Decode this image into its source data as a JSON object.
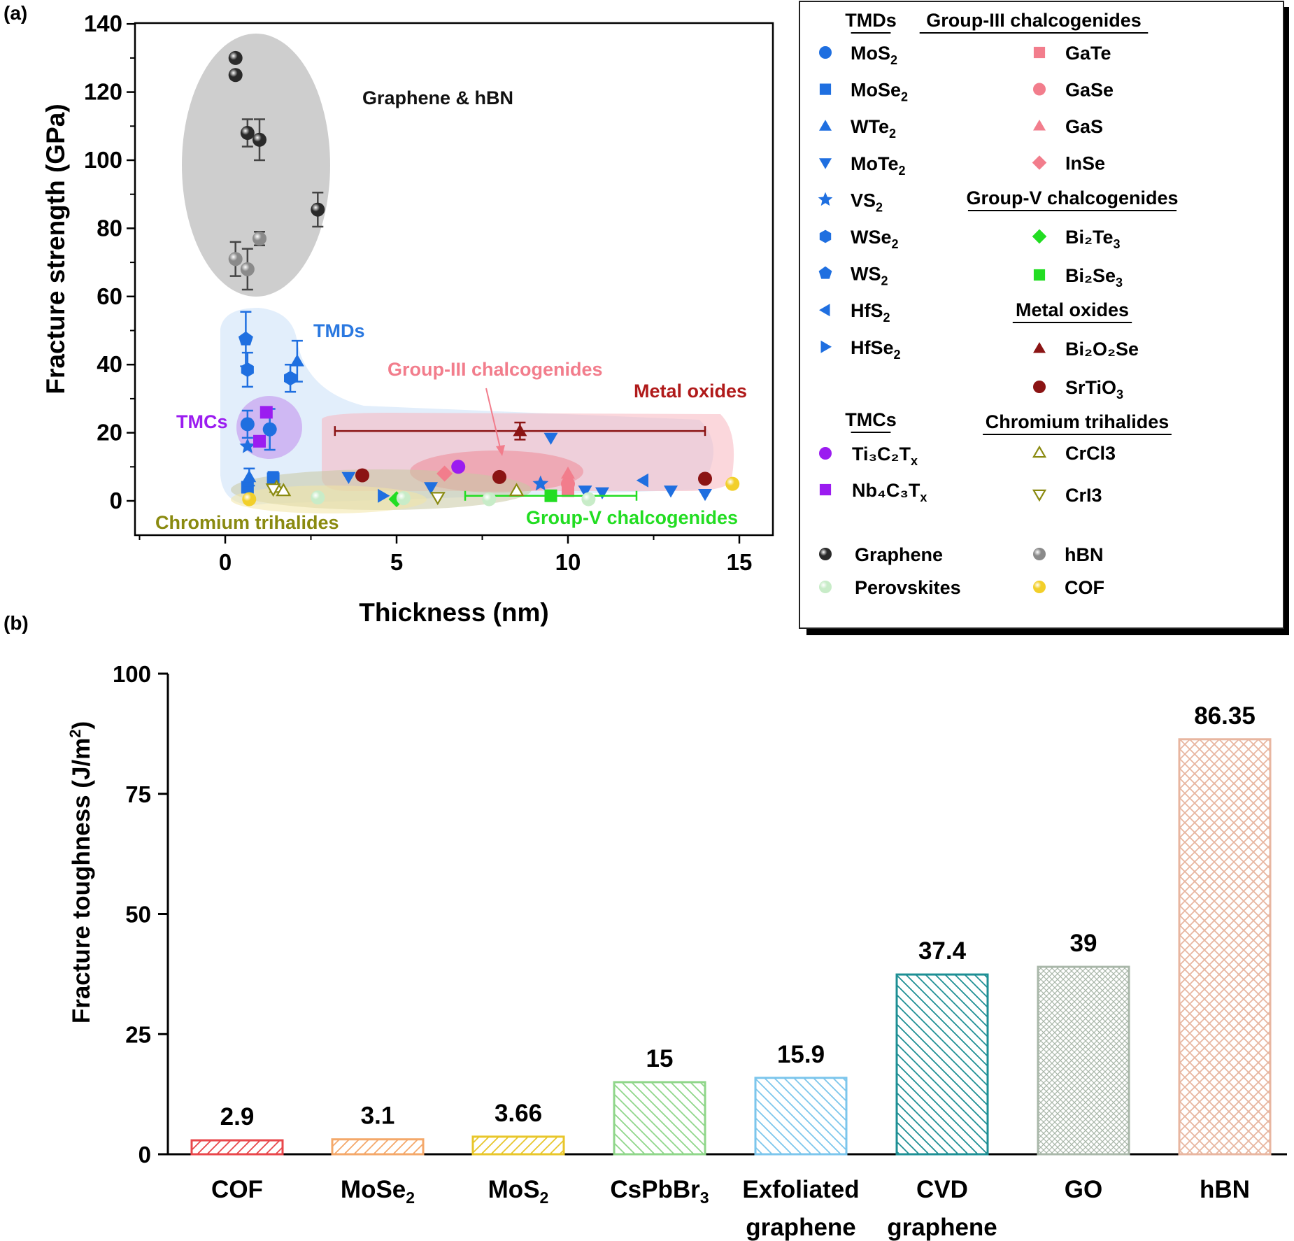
{
  "chart_data": [
    {
      "panel_label": "(a)",
      "type": "scatter",
      "xlabel": "Thickness (nm)",
      "ylabel": "Fracture strength (GPa)",
      "xlim": [
        -2.5,
        16
      ],
      "ylim": [
        -10,
        140
      ],
      "xticks": [
        "0",
        "5",
        "10",
        "15"
      ],
      "yticks": [
        "0",
        "20",
        "40",
        "60",
        "80",
        "100",
        "120",
        "140"
      ],
      "region_labels": {
        "graphene_hbn": "Graphene & hBN",
        "tmds": "TMDs",
        "tmcs": "TMCs",
        "group3": "Group-III chalcogenides",
        "metal_oxides": "Metal oxides",
        "chromium": "Chromium trihalides",
        "group5": "Group-V chalcogenides"
      },
      "legend": {
        "left_groups": [
          {
            "title": "TMDs",
            "items": [
              {
                "sym": "circle",
                "color": "#1f6fe0",
                "main": "MoS",
                "sub": "2"
              },
              {
                "sym": "square",
                "color": "#1f6fe0",
                "main": "MoSe",
                "sub": "2"
              },
              {
                "sym": "triangle-up",
                "color": "#1f6fe0",
                "main": "WTe",
                "sub": "2"
              },
              {
                "sym": "triangle-down",
                "color": "#1f6fe0",
                "main": "MoTe",
                "sub": "2"
              },
              {
                "sym": "star",
                "color": "#1f6fe0",
                "main": "VS",
                "sub": "2"
              },
              {
                "sym": "hexagon",
                "color": "#1f6fe0",
                "main": "WSe",
                "sub": "2"
              },
              {
                "sym": "pentagon",
                "color": "#1f6fe0",
                "main": "WS",
                "sub": "2"
              },
              {
                "sym": "triangle-left",
                "color": "#1f6fe0",
                "main": "HfS",
                "sub": "2"
              },
              {
                "sym": "triangle-right",
                "color": "#1f6fe0",
                "main": "HfSe",
                "sub": "2"
              }
            ]
          },
          {
            "title": "TMCs",
            "items": [
              {
                "sym": "circle",
                "color": "#9b1cf0",
                "main": "Ti₃C₂T",
                "sub": "x"
              },
              {
                "sym": "square",
                "color": "#9b1cf0",
                "main": "Nb₄C₃T",
                "sub": "x"
              }
            ]
          }
        ],
        "right_groups": [
          {
            "title": "Group-III chalcogenides",
            "items": [
              {
                "sym": "square",
                "color": "#f27d8c",
                "main": "GaTe",
                "sub": ""
              },
              {
                "sym": "circle",
                "color": "#f27d8c",
                "main": "GaSe",
                "sub": ""
              },
              {
                "sym": "triangle-up",
                "color": "#f27d8c",
                "main": "GaS",
                "sub": ""
              },
              {
                "sym": "diamond",
                "color": "#f27d8c",
                "main": "InSe",
                "sub": ""
              }
            ]
          },
          {
            "title": "Group-V chalcogenides",
            "items": [
              {
                "sym": "diamond",
                "color": "#22dd22",
                "main": "Bi₂Te",
                "sub": "3"
              },
              {
                "sym": "square",
                "color": "#22dd22",
                "main": "Bi₂Se",
                "sub": "3"
              }
            ]
          },
          {
            "title": "Metal oxides",
            "items": [
              {
                "sym": "triangle-up",
                "color": "#8b1414",
                "main": "Bi₂O₂Se",
                "sub": ""
              },
              {
                "sym": "circle",
                "color": "#8b1414",
                "main": "SrTiO",
                "sub": "3"
              }
            ]
          },
          {
            "title": "Chromium trihalides",
            "items": [
              {
                "sym": "open-triangle-up",
                "color": "#8a8a10",
                "main": "CrCl3",
                "sub": ""
              },
              {
                "sym": "open-triangle-down",
                "color": "#8a8a10",
                "main": "CrI3",
                "sub": ""
              }
            ]
          }
        ],
        "bottom_items": [
          {
            "sym": "sphere",
            "color": "#2a2a2a",
            "main": "Graphene",
            "sub": ""
          },
          {
            "sym": "sphere",
            "color": "#8a8a8a",
            "main": "hBN",
            "sub": ""
          },
          {
            "sym": "sphere",
            "color": "#c8ecc8",
            "main": "Perovskites",
            "sub": ""
          },
          {
            "sym": "sphere",
            "color": "#f2cf2a",
            "main": "COF",
            "sub": ""
          }
        ]
      },
      "series": [
        {
          "name": "Graphene",
          "sym": "sphere",
          "color": "#2a2a2a",
          "points": [
            {
              "x": 0.3,
              "y": 130
            },
            {
              "x": 0.3,
              "y": 125
            },
            {
              "x": 0.65,
              "y": 108,
              "err": 4
            },
            {
              "x": 1.0,
              "y": 106,
              "err": 6
            },
            {
              "x": 2.7,
              "y": 85.5,
              "err": 5
            }
          ]
        },
        {
          "name": "hBN",
          "sym": "sphere",
          "color": "#8a8a8a",
          "points": [
            {
              "x": 0.3,
              "y": 71,
              "err": 5
            },
            {
              "x": 0.65,
              "y": 68,
              "err": 6
            },
            {
              "x": 1.0,
              "y": 77,
              "err": 2
            }
          ]
        },
        {
          "name": "MoS2",
          "sym": "circle",
          "color": "#1f6fe0",
          "points": [
            {
              "x": 0.65,
              "y": 22.5,
              "err": 4
            },
            {
              "x": 1.3,
              "y": 21,
              "err": 6
            }
          ]
        },
        {
          "name": "MoSe2",
          "sym": "square",
          "color": "#1f6fe0",
          "points": [
            {
              "x": 0.65,
              "y": 4
            },
            {
              "x": 1.4,
              "y": 6.5,
              "err": 2
            }
          ]
        },
        {
          "name": "WTe2",
          "sym": "triangle-up",
          "color": "#1f6fe0",
          "points": [
            {
              "x": 0.7,
              "y": 7,
              "err": 2.5
            },
            {
              "x": 2.1,
              "y": 41,
              "err": 6
            }
          ]
        },
        {
          "name": "MoTe2",
          "sym": "triangle-down",
          "color": "#1f6fe0",
          "points": [
            {
              "x": 3.6,
              "y": 7
            },
            {
              "x": 6.0,
              "y": 4
            },
            {
              "x": 9.5,
              "y": 18.5
            },
            {
              "x": 10.5,
              "y": 3
            },
            {
              "x": 11.0,
              "y": 2.5
            },
            {
              "x": 13.0,
              "y": 3
            },
            {
              "x": 14.0,
              "y": 2
            }
          ]
        },
        {
          "name": "VS2",
          "sym": "star",
          "color": "#1f6fe0",
          "points": [
            {
              "x": 0.65,
              "y": 16
            },
            {
              "x": 9.2,
              "y": 5
            }
          ]
        },
        {
          "name": "WSe2",
          "sym": "hexagon",
          "color": "#1f6fe0",
          "points": [
            {
              "x": 0.65,
              "y": 38.5,
              "err": 5
            },
            {
              "x": 1.9,
              "y": 36,
              "err": 4
            }
          ]
        },
        {
          "name": "WS2",
          "sym": "pentagon",
          "color": "#1f6fe0",
          "points": [
            {
              "x": 0.6,
              "y": 47.5,
              "err": 8
            }
          ]
        },
        {
          "name": "HfS2",
          "sym": "triangle-left",
          "color": "#1f6fe0",
          "points": [
            {
              "x": 12.2,
              "y": 6
            }
          ]
        },
        {
          "name": "HfSe2",
          "sym": "triangle-right",
          "color": "#1f6fe0",
          "points": [
            {
              "x": 4.6,
              "y": 1.5
            }
          ]
        },
        {
          "name": "Ti3C2Tx",
          "sym": "circle",
          "color": "#9b1cf0",
          "points": [
            {
              "x": 6.8,
              "y": 10
            }
          ]
        },
        {
          "name": "Nb4C3Tx",
          "sym": "square",
          "color": "#9b1cf0",
          "points": [
            {
              "x": 1.2,
              "y": 26
            },
            {
              "x": 1.0,
              "y": 17.5
            }
          ]
        },
        {
          "name": "GaTe",
          "sym": "square",
          "color": "#f27d8c",
          "points": [
            {
              "x": 10.0,
              "y": 3
            }
          ]
        },
        {
          "name": "GaSe",
          "sym": "circle",
          "color": "#f27d8c",
          "points": [
            {
              "x": 10.0,
              "y": 5
            }
          ]
        },
        {
          "name": "GaS",
          "sym": "triangle-up",
          "color": "#f27d8c",
          "points": [
            {
              "x": 10.0,
              "y": 8
            }
          ]
        },
        {
          "name": "InSe",
          "sym": "diamond",
          "color": "#f27d8c",
          "points": [
            {
              "x": 6.4,
              "y": 8
            }
          ]
        },
        {
          "name": "Bi2Te3",
          "sym": "diamond",
          "color": "#22dd22",
          "points": [
            {
              "x": 5.0,
              "y": 0.5
            }
          ]
        },
        {
          "name": "Bi2Se3",
          "sym": "square",
          "color": "#22dd22",
          "points": [
            {
              "x": 9.5,
              "y": 1.5,
              "xerr_low": 7.0,
              "xerr_high": 12.0
            }
          ]
        },
        {
          "name": "Bi2O2Se",
          "sym": "triangle-up",
          "color": "#8b1414",
          "points": [
            {
              "x": 8.6,
              "y": 20.5,
              "err": 2.5,
              "xerr_low": 3.2,
              "xerr_high": 14.0
            }
          ]
        },
        {
          "name": "SrTiO3",
          "sym": "circle",
          "color": "#8b1414",
          "points": [
            {
              "x": 4.0,
              "y": 7.5
            },
            {
              "x": 8.0,
              "y": 7
            },
            {
              "x": 14.0,
              "y": 6.5
            }
          ]
        },
        {
          "name": "CrCl3",
          "sym": "open-triangle-up",
          "color": "#8a8a10",
          "points": [
            {
              "x": 1.5,
              "y": 4
            },
            {
              "x": 1.7,
              "y": 3
            },
            {
              "x": 8.5,
              "y": 3
            }
          ]
        },
        {
          "name": "CrI3",
          "sym": "open-triangle-down",
          "color": "#8a8a10",
          "points": [
            {
              "x": 1.4,
              "y": 3.5
            },
            {
              "x": 6.2,
              "y": 1
            }
          ]
        },
        {
          "name": "Perovskites",
          "sym": "sphere",
          "color": "#c8ecc8",
          "points": [
            {
              "x": 2.7,
              "y": 1
            },
            {
              "x": 5.2,
              "y": 0.8
            },
            {
              "x": 7.7,
              "y": 0.5
            },
            {
              "x": 10.6,
              "y": 0.5
            }
          ]
        },
        {
          "name": "COF",
          "sym": "sphere",
          "color": "#f2cf2a",
          "points": [
            {
              "x": 0.7,
              "y": 0.5
            },
            {
              "x": 14.8,
              "y": 5
            }
          ]
        }
      ]
    },
    {
      "panel_label": "(b)",
      "type": "bar",
      "ylabel_main": "Fracture toughness (J/m",
      "ylabel_sup": "2",
      "ylabel_close": ")",
      "ylim": [
        0,
        100
      ],
      "yticks": [
        "0",
        "25",
        "50",
        "75",
        "100"
      ],
      "categories": [
        {
          "line1": "COF",
          "sub": "",
          "line2": ""
        },
        {
          "line1": "MoSe",
          "sub": "2",
          "line2": ""
        },
        {
          "line1": "MoS",
          "sub": "2",
          "line2": ""
        },
        {
          "line1": "CsPbBr",
          "sub": "3",
          "line2": ""
        },
        {
          "line1": "Exfoliated",
          "sub": "",
          "line2": "graphene"
        },
        {
          "line1": "CVD",
          "sub": "",
          "line2": "graphene"
        },
        {
          "line1": "GO",
          "sub": "",
          "line2": ""
        },
        {
          "line1": "hBN",
          "sub": "",
          "line2": ""
        }
      ],
      "values": [
        2.9,
        3.1,
        3.66,
        15,
        15.9,
        37.4,
        39,
        86.35
      ],
      "labels": [
        "2.9",
        "3.1",
        "3.66",
        "15",
        "15.9",
        "37.4",
        "39",
        "86.35"
      ],
      "colors": [
        "#e8474b",
        "#f4a86a",
        "#e8c62a",
        "#8fd68a",
        "#7cc6ec",
        "#1e8f94",
        "#a9b7a9",
        "#e8b6a0"
      ],
      "patterns": [
        "diag",
        "diag",
        "diag",
        "back",
        "back",
        "back",
        "cross-fine",
        "cross"
      ]
    }
  ]
}
